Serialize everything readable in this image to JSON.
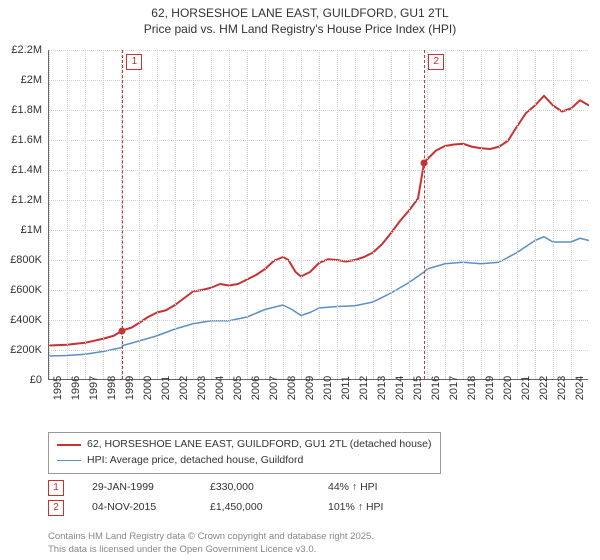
{
  "title_line1": "62, HORSESHOE LANE EAST, GUILDFORD, GU1 2TL",
  "title_line2": "Price paid vs. HM Land Registry's House Price Index (HPI)",
  "chart": {
    "type": "line",
    "background_color": "#ffffff",
    "grid_color": "#d0d0d0",
    "axis_color": "#666666",
    "font_family": "Arial",
    "title_fontsize": 12,
    "tick_fontsize": 11,
    "x": {
      "min": 1995,
      "max": 2025,
      "ticks": [
        1995,
        1996,
        1997,
        1998,
        1999,
        2000,
        2001,
        2002,
        2003,
        2004,
        2005,
        2006,
        2007,
        2008,
        2009,
        2010,
        2011,
        2012,
        2013,
        2014,
        2015,
        2016,
        2017,
        2018,
        2019,
        2020,
        2021,
        2022,
        2023,
        2024
      ],
      "tick_labels": [
        "1995",
        "1996",
        "1997",
        "1998",
        "1999",
        "2000",
        "2001",
        "2002",
        "2003",
        "2004",
        "2005",
        "2006",
        "2007",
        "2008",
        "2009",
        "2010",
        "2011",
        "2012",
        "2013",
        "2014",
        "2015",
        "2016",
        "2017",
        "2018",
        "2019",
        "2020",
        "2021",
        "2022",
        "2023",
        "2024"
      ],
      "label_rotation_deg": -90
    },
    "y": {
      "min": 0,
      "max": 2200000,
      "ticks": [
        0,
        200000,
        400000,
        600000,
        800000,
        1000000,
        1200000,
        1400000,
        1600000,
        1800000,
        2000000,
        2200000
      ],
      "tick_labels": [
        "£0",
        "£200K",
        "£400K",
        "£600K",
        "£800K",
        "£1M",
        "£1.2M",
        "£1.4M",
        "£1.6M",
        "£1.8M",
        "£2M",
        "£2.2M"
      ]
    },
    "series": [
      {
        "name": "62, HORSESHOE LANE EAST, GUILDFORD, GU1 2TL (detached house)",
        "color": "#c83232",
        "line_width": 2,
        "points": [
          [
            1995,
            230000
          ],
          [
            1996,
            235000
          ],
          [
            1997,
            248000
          ],
          [
            1998,
            275000
          ],
          [
            1998.6,
            295000
          ],
          [
            1999.08,
            330000
          ],
          [
            1999.6,
            350000
          ],
          [
            2000,
            380000
          ],
          [
            2000.5,
            420000
          ],
          [
            2001,
            450000
          ],
          [
            2001.5,
            465000
          ],
          [
            2002,
            500000
          ],
          [
            2002.5,
            545000
          ],
          [
            2003,
            590000
          ],
          [
            2003.5,
            600000
          ],
          [
            2004,
            615000
          ],
          [
            2004.5,
            640000
          ],
          [
            2005,
            630000
          ],
          [
            2005.5,
            640000
          ],
          [
            2006,
            670000
          ],
          [
            2006.5,
            700000
          ],
          [
            2007,
            740000
          ],
          [
            2007.5,
            795000
          ],
          [
            2008,
            820000
          ],
          [
            2008.3,
            800000
          ],
          [
            2008.7,
            720000
          ],
          [
            2009,
            690000
          ],
          [
            2009.5,
            720000
          ],
          [
            2010,
            780000
          ],
          [
            2010.5,
            805000
          ],
          [
            2011,
            800000
          ],
          [
            2011.5,
            790000
          ],
          [
            2012,
            800000
          ],
          [
            2012.5,
            820000
          ],
          [
            2013,
            850000
          ],
          [
            2013.5,
            905000
          ],
          [
            2014,
            980000
          ],
          [
            2014.5,
            1060000
          ],
          [
            2015,
            1130000
          ],
          [
            2015.5,
            1210000
          ],
          [
            2015.84,
            1450000
          ],
          [
            2016,
            1470000
          ],
          [
            2016.5,
            1530000
          ],
          [
            2017,
            1560000
          ],
          [
            2017.5,
            1570000
          ],
          [
            2018,
            1575000
          ],
          [
            2018.5,
            1555000
          ],
          [
            2019,
            1545000
          ],
          [
            2019.5,
            1540000
          ],
          [
            2020,
            1555000
          ],
          [
            2020.5,
            1595000
          ],
          [
            2021,
            1690000
          ],
          [
            2021.5,
            1780000
          ],
          [
            2022,
            1830000
          ],
          [
            2022.5,
            1895000
          ],
          [
            2023,
            1830000
          ],
          [
            2023.5,
            1790000
          ],
          [
            2024,
            1810000
          ],
          [
            2024.5,
            1865000
          ],
          [
            2025,
            1830000
          ]
        ]
      },
      {
        "name": "HPI: Average price, detached house, Guildford",
        "color": "#5a8fc8",
        "line_width": 1.5,
        "points": [
          [
            1995,
            160000
          ],
          [
            1996,
            163000
          ],
          [
            1997,
            172000
          ],
          [
            1998,
            190000
          ],
          [
            1999,
            215000
          ],
          [
            1999.08,
            229000
          ],
          [
            2000,
            260000
          ],
          [
            2001,
            295000
          ],
          [
            2002,
            340000
          ],
          [
            2003,
            375000
          ],
          [
            2004,
            395000
          ],
          [
            2005,
            395000
          ],
          [
            2006,
            420000
          ],
          [
            2007,
            470000
          ],
          [
            2008,
            500000
          ],
          [
            2008.5,
            470000
          ],
          [
            2009,
            430000
          ],
          [
            2009.5,
            450000
          ],
          [
            2010,
            480000
          ],
          [
            2011,
            490000
          ],
          [
            2012,
            495000
          ],
          [
            2013,
            520000
          ],
          [
            2014,
            580000
          ],
          [
            2015,
            650000
          ],
          [
            2015.84,
            720000
          ],
          [
            2016,
            740000
          ],
          [
            2017,
            775000
          ],
          [
            2018,
            785000
          ],
          [
            2019,
            775000
          ],
          [
            2020,
            785000
          ],
          [
            2021,
            850000
          ],
          [
            2022,
            930000
          ],
          [
            2022.5,
            955000
          ],
          [
            2023,
            920000
          ],
          [
            2024,
            920000
          ],
          [
            2024.5,
            945000
          ],
          [
            2025,
            930000
          ]
        ]
      }
    ],
    "events": [
      {
        "index": 1,
        "x": 1999.08,
        "series0_y": 330000,
        "date": "29-JAN-1999",
        "price": "£330,000",
        "hpi_delta": "44% ↑ HPI"
      },
      {
        "index": 2,
        "x": 2015.84,
        "series0_y": 1450000,
        "date": "04-NOV-2015",
        "price": "£1,450,000",
        "hpi_delta": "101% ↑ HPI"
      }
    ],
    "event_line_color": "#c83232",
    "event_badge_border": "#c83232",
    "event_badge_text_color": "#c83232",
    "marker_color": "#c83232"
  },
  "legend": {
    "border_color": "#999999",
    "fontsize": 10.5
  },
  "footer": {
    "line1": "Contains HM Land Registry data © Crown copyright and database right 2025.",
    "line2": "This data is licensed under the Open Government Licence v3.0.",
    "color": "#888888",
    "fontsize": 9.5
  }
}
